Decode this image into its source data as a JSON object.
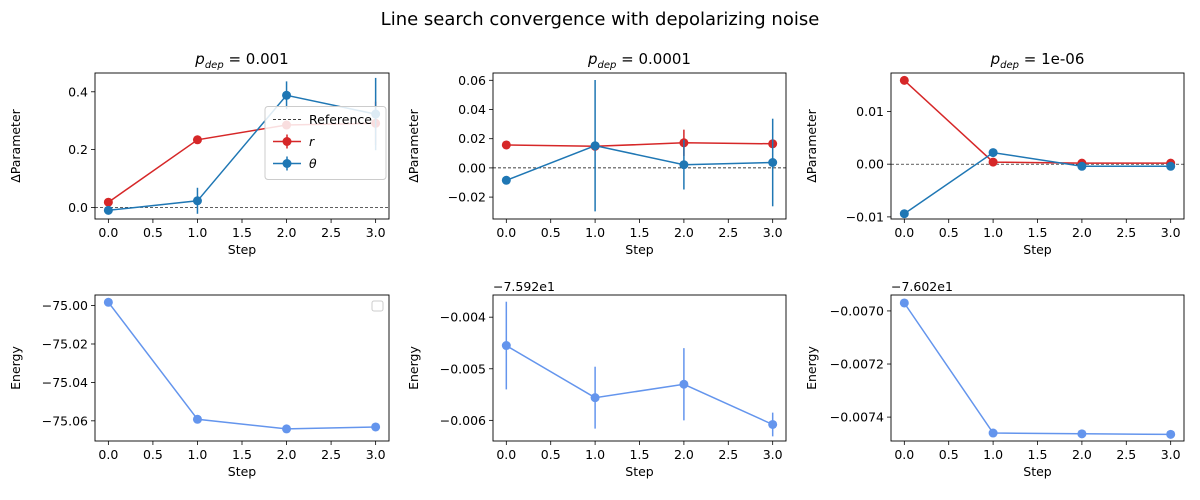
{
  "figure": {
    "title": "Line search convergence with depolarizing noise"
  },
  "colors": {
    "r": "#d62728",
    "theta": "#1f77b4",
    "energy": "#6495ed",
    "reference": "#000000"
  },
  "chart_data": [
    {
      "type": "line",
      "panel": "top-left",
      "title_symbol": "p",
      "title_subscript": "dep",
      "title_value": " = 0.001",
      "xlabel": "Step",
      "ylabel": "ΔParameter",
      "xlim": [
        -0.15,
        3.15
      ],
      "ylim": [
        -0.04,
        0.465
      ],
      "xticks": [
        0,
        0.5,
        1,
        1.5,
        2,
        2.5,
        3
      ],
      "xtick_labels": [
        "0.0",
        "0.5",
        "1.0",
        "1.5",
        "2.0",
        "2.5",
        "3.0"
      ],
      "yticks": [
        0,
        0.2,
        0.4
      ],
      "ytick_labels": [
        "0.0",
        "0.2",
        "0.4"
      ],
      "offset_text": "",
      "reference_line": 0,
      "legend": {
        "position": "center-right",
        "entries": [
          {
            "label": "Reference",
            "style": "dashed"
          },
          {
            "label": "r",
            "series": "r"
          },
          {
            "label": "θ",
            "series": "theta"
          }
        ]
      },
      "series": [
        {
          "name": "r",
          "key": "r",
          "x": [
            0,
            1,
            2,
            3
          ],
          "y": [
            0.018,
            0.234,
            0.285,
            0.291
          ],
          "yerr": [
            0.005,
            0.004,
            0.005,
            0.075
          ]
        },
        {
          "name": "θ",
          "key": "theta",
          "x": [
            0,
            1,
            2,
            3
          ],
          "y": [
            -0.01,
            0.023,
            0.388,
            0.323
          ],
          "yerr": [
            0.004,
            0.045,
            0.048,
            0.125
          ]
        }
      ]
    },
    {
      "type": "line",
      "panel": "top-middle",
      "title_symbol": "p",
      "title_subscript": "dep",
      "title_value": " = 0.0001",
      "xlabel": "Step",
      "ylabel": "ΔParameter",
      "xlim": [
        -0.15,
        3.15
      ],
      "ylim": [
        -0.035,
        0.065
      ],
      "xticks": [
        0,
        0.5,
        1,
        1.5,
        2,
        2.5,
        3
      ],
      "xtick_labels": [
        "0.0",
        "0.5",
        "1.0",
        "1.5",
        "2.0",
        "2.5",
        "3.0"
      ],
      "yticks": [
        -0.02,
        0,
        0.02,
        0.04,
        0.06
      ],
      "ytick_labels": [
        "−0.02",
        "0.00",
        "0.02",
        "0.04",
        "0.06"
      ],
      "offset_text": "",
      "reference_line": 0,
      "series": [
        {
          "name": "r",
          "key": "r",
          "x": [
            0,
            1,
            2,
            3
          ],
          "y": [
            0.0157,
            0.0148,
            0.0172,
            0.0165
          ],
          "yerr": [
            0.001,
            0.001,
            0.009,
            0.001
          ]
        },
        {
          "name": "θ",
          "key": "theta",
          "x": [
            0,
            1,
            2,
            3
          ],
          "y": [
            -0.0085,
            0.0152,
            0.0022,
            0.0037
          ],
          "yerr": [
            0.001,
            0.045,
            0.017,
            0.03
          ]
        }
      ]
    },
    {
      "type": "line",
      "panel": "top-right",
      "title_symbol": "p",
      "title_subscript": "dep",
      "title_value": " = 1e-06",
      "xlabel": "Step",
      "ylabel": "ΔParameter",
      "xlim": [
        -0.15,
        3.15
      ],
      "ylim": [
        -0.0104,
        0.0173
      ],
      "xticks": [
        0,
        0.5,
        1,
        1.5,
        2,
        2.5,
        3
      ],
      "xtick_labels": [
        "0.0",
        "0.5",
        "1.0",
        "1.5",
        "2.0",
        "2.5",
        "3.0"
      ],
      "yticks": [
        -0.01,
        0,
        0.01
      ],
      "ytick_labels": [
        "−0.01",
        "0.00",
        "0.01"
      ],
      "offset_text": "",
      "reference_line": 0,
      "series": [
        {
          "name": "r",
          "key": "r",
          "x": [
            0,
            1,
            2,
            3
          ],
          "y": [
            0.0159,
            0.0004,
            0.0002,
            0.0002
          ],
          "yerr": [
            0,
            0,
            0,
            0
          ]
        },
        {
          "name": "θ",
          "key": "theta",
          "x": [
            0,
            1,
            2,
            3
          ],
          "y": [
            -0.0094,
            0.0022,
            -0.0004,
            -0.0004
          ],
          "yerr": [
            0,
            0,
            0,
            0
          ]
        }
      ]
    },
    {
      "type": "line",
      "panel": "bottom-left",
      "xlabel": "Step",
      "ylabel": "Energy",
      "xlim": [
        -0.15,
        3.15
      ],
      "ylim": [
        -75.0705,
        -74.9945
      ],
      "xticks": [
        0,
        0.5,
        1,
        1.5,
        2,
        2.5,
        3
      ],
      "xtick_labels": [
        "0.0",
        "0.5",
        "1.0",
        "1.5",
        "2.0",
        "2.5",
        "3.0"
      ],
      "yticks": [
        -75.06,
        -75.04,
        -75.02,
        -75.0
      ],
      "ytick_labels": [
        "−75.06",
        "−75.04",
        "−75.02",
        "−75.00"
      ],
      "offset_text": "",
      "legend": {
        "position": "top-right",
        "entries": []
      },
      "series": [
        {
          "name": "Energy",
          "key": "energy",
          "x": [
            0,
            1,
            2,
            3
          ],
          "y": [
            -74.9983,
            -75.0592,
            -75.0642,
            -75.0632
          ],
          "yerr": [
            0,
            0,
            0,
            0
          ]
        }
      ]
    },
    {
      "type": "line",
      "panel": "bottom-middle",
      "xlabel": "Step",
      "ylabel": "Energy",
      "xlim": [
        -0.15,
        3.15
      ],
      "ylim": [
        -0.0064,
        -0.00357
      ],
      "xticks": [
        0,
        0.5,
        1,
        1.5,
        2,
        2.5,
        3
      ],
      "xtick_labels": [
        "0.0",
        "0.5",
        "1.0",
        "1.5",
        "2.0",
        "2.5",
        "3.0"
      ],
      "yticks": [
        -0.006,
        -0.005,
        -0.004
      ],
      "ytick_labels": [
        "−0.006",
        "−0.005",
        "−0.004"
      ],
      "offset_text": "−7.592e1",
      "series": [
        {
          "name": "Energy",
          "key": "energy",
          "x": [
            0,
            1,
            2,
            3
          ],
          "y": [
            -0.00455,
            -0.00556,
            -0.0053,
            -0.00608
          ],
          "yerr": [
            0.00085,
            0.0006,
            0.0007,
            0.00023
          ]
        }
      ]
    },
    {
      "type": "line",
      "panel": "bottom-right",
      "xlabel": "Step",
      "ylabel": "Energy",
      "xlim": [
        -0.15,
        3.15
      ],
      "ylim": [
        -0.00749,
        -0.00694
      ],
      "xticks": [
        0,
        0.5,
        1,
        1.5,
        2,
        2.5,
        3
      ],
      "xtick_labels": [
        "0.0",
        "0.5",
        "1.0",
        "1.5",
        "2.0",
        "2.5",
        "3.0"
      ],
      "yticks": [
        -0.0074,
        -0.0072,
        -0.007
      ],
      "ytick_labels": [
        "−0.0074",
        "−0.0072",
        "−0.0070"
      ],
      "offset_text": "−7.602e1",
      "series": [
        {
          "name": "Energy",
          "key": "energy",
          "x": [
            0,
            1,
            2,
            3
          ],
          "y": [
            -0.00697,
            -0.00746,
            -0.007463,
            -0.007465
          ],
          "yerr": [
            0,
            0,
            0,
            0
          ]
        }
      ]
    }
  ]
}
